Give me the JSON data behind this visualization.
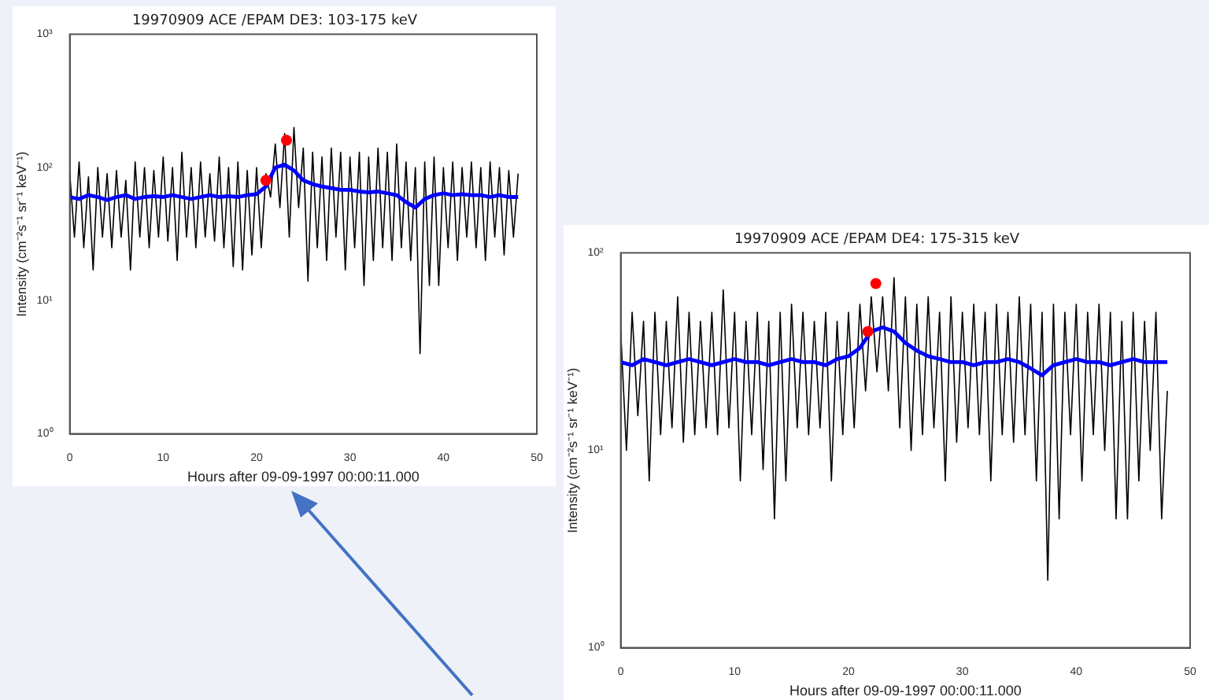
{
  "chart_data": [
    {
      "type": "line",
      "title": "19970909 ACE /EPAM DE3: 103-175 keV",
      "xlabel": "Hours after 09-09-1997 00:00:11.000",
      "ylabel": "Intensity (cm⁻²s⁻¹ sr⁻¹ keV⁻¹)",
      "log": "y",
      "grid": false,
      "legend": false,
      "xlim": [
        0,
        50
      ],
      "xticks": [
        0,
        10,
        20,
        30,
        40,
        50
      ],
      "ylim": [
        1,
        1000
      ],
      "yticks": [
        {
          "value": 1,
          "label": "10⁰"
        },
        {
          "value": 10,
          "label": "10¹"
        },
        {
          "value": 100,
          "label": "10²"
        },
        {
          "value": 1000,
          "label": "10³"
        }
      ],
      "series": [
        {
          "color": "#000000",
          "marker": "none",
          "x": [
            0,
            0.5,
            1,
            1.5,
            2,
            2.5,
            3,
            3.5,
            4,
            4.5,
            5,
            5.5,
            6,
            6.5,
            7,
            7.5,
            8,
            8.5,
            9,
            9.5,
            10,
            10.5,
            11,
            11.5,
            12,
            12.5,
            13,
            13.5,
            14,
            14.5,
            15,
            15.5,
            16,
            16.5,
            17,
            17.5,
            18,
            18.5,
            19,
            19.5,
            20,
            20.5,
            21,
            21.5,
            22,
            22.5,
            23,
            23.5,
            24,
            24.5,
            25,
            25.5,
            26,
            26.5,
            27,
            27.5,
            28,
            28.5,
            29,
            29.5,
            30,
            30.5,
            31,
            31.5,
            32,
            32.5,
            33,
            33.5,
            34,
            34.5,
            35,
            35.5,
            36,
            36.5,
            37,
            37.5,
            38,
            38.5,
            39,
            39.5,
            40,
            40.5,
            41,
            41.5,
            42,
            42.5,
            43,
            43.5,
            44,
            44.5,
            45,
            45.5,
            46,
            46.5,
            47,
            47.5,
            48
          ],
          "values": [
            90,
            30,
            110,
            25,
            85,
            17,
            100,
            30,
            90,
            25,
            95,
            30,
            80,
            17,
            110,
            30,
            100,
            25,
            95,
            30,
            120,
            28,
            100,
            20,
            130,
            30,
            100,
            25,
            110,
            30,
            90,
            28,
            120,
            25,
            100,
            18,
            110,
            17,
            95,
            22,
            100,
            25,
            90,
            60,
            150,
            50,
            180,
            30,
            200,
            50,
            140,
            14,
            130,
            25,
            120,
            20,
            140,
            30,
            130,
            17,
            120,
            25,
            130,
            13,
            120,
            20,
            140,
            25,
            130,
            20,
            150,
            25,
            110,
            20,
            100,
            4,
            110,
            13,
            120,
            13,
            100,
            25,
            110,
            20,
            100,
            30,
            110,
            25,
            100,
            20,
            110,
            30,
            100,
            22,
            95,
            30,
            90
          ]
        },
        {
          "color": "#0000ff",
          "marker": "none",
          "x": [
            0,
            1,
            2,
            3,
            4,
            5,
            6,
            7,
            8,
            9,
            10,
            11,
            12,
            13,
            14,
            15,
            16,
            17,
            18,
            19,
            20,
            21,
            22,
            23,
            24,
            25,
            26,
            27,
            28,
            29,
            30,
            31,
            32,
            33,
            34,
            35,
            36,
            37,
            38,
            39,
            40,
            41,
            42,
            43,
            44,
            45,
            46,
            47,
            48
          ],
          "values": [
            60,
            58,
            62,
            60,
            57,
            60,
            62,
            58,
            60,
            61,
            60,
            62,
            60,
            58,
            60,
            62,
            60,
            61,
            60,
            62,
            63,
            72,
            100,
            105,
            95,
            80,
            75,
            72,
            70,
            68,
            68,
            66,
            65,
            66,
            64,
            62,
            55,
            50,
            58,
            62,
            64,
            62,
            63,
            62,
            62,
            60,
            62,
            60,
            60
          ]
        },
        {
          "type": "scatter",
          "color": "#ff0000",
          "marker": "circle",
          "x": [
            21,
            23.2
          ],
          "values": [
            80,
            160
          ]
        }
      ]
    },
    {
      "type": "line",
      "title": "19970909 ACE /EPAM DE4: 175-315 keV",
      "xlabel": "Hours after 09-09-1997 00:00:11.000",
      "ylabel": "Intensity (cm⁻²s⁻¹ sr⁻¹ keV⁻¹)",
      "log": "y",
      "grid": false,
      "legend": false,
      "xlim": [
        0,
        50
      ],
      "xticks": [
        0,
        10,
        20,
        30,
        40,
        50
      ],
      "ylim": [
        1,
        100
      ],
      "yticks": [
        {
          "value": 1,
          "label": "10⁰"
        },
        {
          "value": 10,
          "label": "10¹"
        },
        {
          "value": 100,
          "label": "10²"
        }
      ],
      "series": [
        {
          "color": "#000000",
          "marker": "none",
          "x": [
            0,
            0.5,
            1,
            1.5,
            2,
            2.5,
            3,
            3.5,
            4,
            4.5,
            5,
            5.5,
            6,
            6.5,
            7,
            7.5,
            8,
            8.5,
            9,
            9.5,
            10,
            10.5,
            11,
            11.5,
            12,
            12.5,
            13,
            13.5,
            14,
            14.5,
            15,
            15.5,
            16,
            16.5,
            17,
            17.5,
            18,
            18.5,
            19,
            19.5,
            20,
            20.5,
            21,
            21.5,
            22,
            22.5,
            23,
            23.5,
            24,
            24.5,
            25,
            25.5,
            26,
            26.5,
            27,
            27.5,
            28,
            28.5,
            29,
            29.5,
            30,
            30.5,
            31,
            31.5,
            32,
            32.5,
            33,
            33.5,
            34,
            34.5,
            35,
            35.5,
            36,
            36.5,
            37,
            37.5,
            38,
            38.5,
            39,
            39.5,
            40,
            40.5,
            41,
            41.5,
            42,
            42.5,
            43,
            43.5,
            44,
            44.5,
            45,
            45.5,
            46,
            46.5,
            47,
            47.5,
            48
          ],
          "values": [
            40,
            10,
            50,
            15,
            45,
            7,
            50,
            12,
            45,
            13,
            60,
            11,
            50,
            12,
            45,
            13,
            50,
            12,
            65,
            13,
            50,
            7,
            45,
            12,
            50,
            8,
            45,
            4.5,
            50,
            7,
            55,
            13,
            50,
            12,
            45,
            13,
            50,
            7,
            45,
            12,
            50,
            13,
            55,
            20,
            60,
            25,
            60,
            20,
            75,
            13,
            60,
            10,
            55,
            12,
            60,
            13,
            50,
            7,
            60,
            11,
            50,
            13,
            55,
            12,
            50,
            7,
            55,
            12,
            50,
            11,
            60,
            12,
            55,
            7,
            50,
            2.2,
            55,
            4.5,
            50,
            12,
            55,
            7,
            50,
            12,
            55,
            10,
            50,
            4.5,
            45,
            4.5,
            50,
            7,
            45,
            10,
            50,
            4.5,
            20
          ]
        },
        {
          "color": "#0000ff",
          "marker": "none",
          "x": [
            0,
            1,
            2,
            3,
            4,
            5,
            6,
            7,
            8,
            9,
            10,
            11,
            12,
            13,
            14,
            15,
            16,
            17,
            18,
            19,
            20,
            21,
            22,
            23,
            24,
            25,
            26,
            27,
            28,
            29,
            30,
            31,
            32,
            33,
            34,
            35,
            36,
            37,
            38,
            39,
            40,
            41,
            42,
            43,
            44,
            45,
            46,
            47,
            48
          ],
          "values": [
            28,
            27,
            29,
            28,
            27,
            28,
            29,
            28,
            27,
            28,
            29,
            28,
            28,
            27,
            28,
            29,
            28,
            28,
            27,
            29,
            30,
            33,
            40,
            42,
            40,
            35,
            32,
            30,
            29,
            28,
            28,
            27,
            28,
            28,
            29,
            28,
            26,
            24,
            27,
            28,
            29,
            28,
            28,
            27,
            28,
            29,
            28,
            28,
            28
          ]
        },
        {
          "type": "scatter",
          "color": "#ff0000",
          "marker": "circle",
          "x": [
            21.7,
            22.4
          ],
          "values": [
            40,
            70
          ]
        }
      ]
    }
  ]
}
